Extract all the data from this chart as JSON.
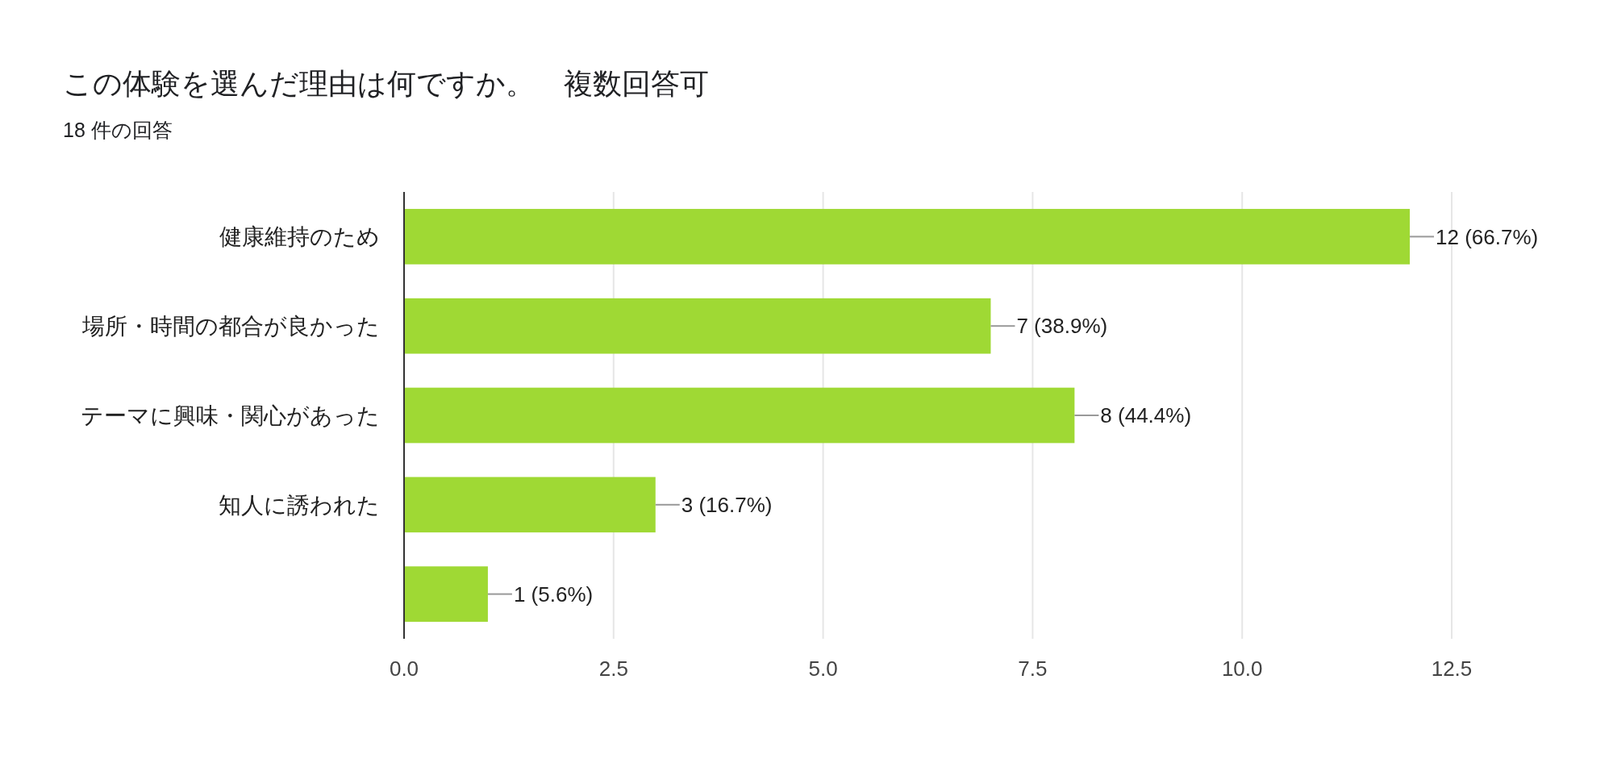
{
  "chart_data": {
    "type": "bar",
    "orientation": "horizontal",
    "title": "この体験を選んだ理由は何ですか。　複数回答可",
    "subtitle": "18 件の回答",
    "categories": [
      "健康維持のため",
      "場所・時間の都合が良かった",
      "テーマに興味・関心があった",
      "知人に誘われた",
      null
    ],
    "values": [
      12,
      7,
      8,
      3,
      1
    ],
    "value_labels": [
      "12 (66.7%)",
      "7 (38.9%)",
      "8 (44.4%)",
      "3 (16.7%)",
      "1 (5.6%)"
    ],
    "color": "#9fd934",
    "xlim": [
      0,
      12.5
    ],
    "xticks": [
      {
        "value": 0,
        "label": "0.0"
      },
      {
        "value": 2.5,
        "label": "2.5"
      },
      {
        "value": 5,
        "label": "5.0"
      },
      {
        "value": 7.5,
        "label": "7.5"
      },
      {
        "value": 10,
        "label": "10.0"
      },
      {
        "value": 12.5,
        "label": "12.5"
      }
    ],
    "grid": "x"
  }
}
